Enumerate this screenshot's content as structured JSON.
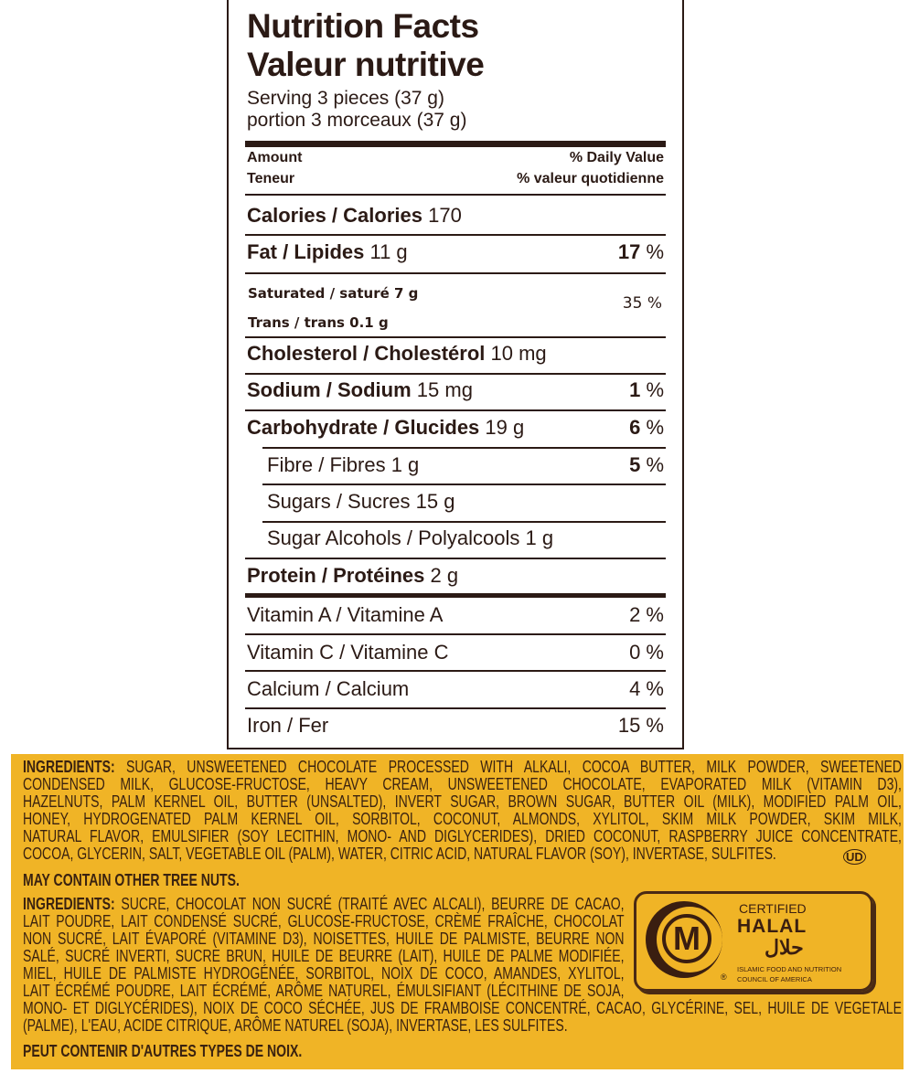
{
  "label": {
    "title_en": "Nutrition Facts",
    "title_fr": "Valeur nutritive",
    "serving_en": "Serving 3 pieces (37 g)",
    "serving_fr": "portion 3 morceaux (37 g)",
    "amount_en": "Amount",
    "amount_fr": "Teneur",
    "dv_en": "% Daily Value",
    "dv_fr": "% valeur quotidienne",
    "rows": [
      {
        "name": "Calories / Calories",
        "value": "170",
        "dv": ""
      },
      {
        "name": "Fat / Lipides",
        "value": "11 g",
        "dv": "17",
        "pct": "%"
      },
      {
        "name": "Saturated / saturé 7 g",
        "value": "",
        "dv": "35 %"
      },
      {
        "name": "Trans / trans 0.1 g",
        "value": "",
        "dv": ""
      },
      {
        "name": "Cholesterol / Cholestérol",
        "value": "10 mg",
        "dv": ""
      },
      {
        "name": "Sodium / Sodium",
        "value": "15 mg",
        "dv": "1",
        "pct": "%"
      },
      {
        "name": "Carbohydrate / Glucides",
        "value": "19 g",
        "dv": "6",
        "pct": "%"
      },
      {
        "name": "Fibre / Fibres 1 g",
        "value": "",
        "dv": "5",
        "pct": "%"
      },
      {
        "name": "Sugars / Sucres 15 g",
        "value": "",
        "dv": ""
      },
      {
        "name": "Sugar Alcohols / Polyalcools 1 g",
        "value": "",
        "dv": ""
      },
      {
        "name": "Protein / Protéines",
        "value": "2 g",
        "dv": ""
      },
      {
        "name": "Vitamin A / Vitamine A",
        "value": "",
        "dv": "2 %"
      },
      {
        "name": "Vitamin C / Vitamine C",
        "value": "",
        "dv": "0 %"
      },
      {
        "name": "Calcium / Calcium",
        "value": "",
        "dv": "4 %"
      },
      {
        "name": "Iron / Fer",
        "value": "",
        "dv": "15 %"
      }
    ]
  },
  "ingredients_en": [
    "INGREDIENTS: SUGAR, UNSWEETENED CHOCOLATE PROCESSED WITH ALKALI, COCOA BUTTER, MILK POWDER, SWEETENED",
    "CONDENSED MILK, GLUCOSE-FRUCTOSE, HEAVY CREAM, UNSWEETENED CHOCOLATE, EVAPORATED MILK (VITAMIN D3),",
    "HAZELNUTS, PALM KERNEL OIL, BUTTER (UNSALTED), INVERT SUGAR, BROWN SUGAR, BUTTER OIL (MILK), MODIFIED PALM OIL,",
    "HONEY, HYDROGENATED PALM KERNEL OIL, SORBITOL, COCONUT, ALMONDS, XYLITOL, SKIM MILK POWDER, SKIM MILK,",
    "NATURAL FLAVOR, EMULSIFIER (SOY LECITHIN, MONO- AND DIGLYCERIDES), DRIED COCONUT, RASPBERRY JUICE CONCENTRATE,",
    "COCOA, GLYCERIN, SALT, VEGETABLE OIL (PALM), WATER, CITRIC ACID, NATURAL FLAVOR (SOY), INVERTASE, SULFITES."
  ],
  "kosher_mark": "UD",
  "allergen_en": "MAY CONTAIN OTHER TREE NUTS.",
  "ingredients_fr": [
    "INGREDIENTS: SUCRE, CHOCOLAT NON SUCRÉ (TRAITÉ AVEC ALCALI), BEURRE DE CACAO,",
    "LAIT POUDRE, LAIT CONDENSÉ SUCRÉ, GLUCOSE-FRUCTOSE, CRÈME FRAÎCHE, CHOCOLAT",
    "NON SUCRÉ, LAIT ÉVAPORÉ (VITAMINE D3), NOISETTES, HUILE DE PALMISTE, BEURRE NON",
    "SALÉ, SUCRÉ INVERTI, SUCRE BRUN, HUILE DE BEURRE (LAIT), HUILE DE PALME MODIFIÉE,",
    "MIEL, HUILE DE PALMISTE HYDROGÉNÉE, SORBITOL, NOIX DE COCO, AMANDES, XYLITOL,",
    "LAIT ÉCRÉMÉ POUDRE, LAIT ÉCRÉMÉ, ARÔME NATUREL, ÉMULSIFIANT (LÉCITHINE DE SOJA,",
    "MONO- ET DIGLYCÉRIDES), NOIX DE COCO SÉCHÉE, JUS DE FRAMBOISE CONCENTRÉ, CACAO, GLYCÉRINE, SEL, HUILE DE VEGETALE",
    "(PALME), L'EAU, ACIDE CITRIQUE, ARÔME NATUREL (SOJA), INVERTASE, LES SULFITES."
  ],
  "allergen_fr": "PEUT CONTENIR D'AUTRES TYPES DE NOIX.",
  "halal": {
    "letter": "M",
    "certified": "CERTIFIED",
    "halal": "HALAL",
    "arabic": "حلال",
    "org1": "ISLAMIC FOOD AND NUTRITION",
    "org2": "COUNCIL OF AMERICA",
    "reg": "®"
  },
  "colors": {
    "text": "#2b1a15",
    "band": "#f0b426"
  }
}
